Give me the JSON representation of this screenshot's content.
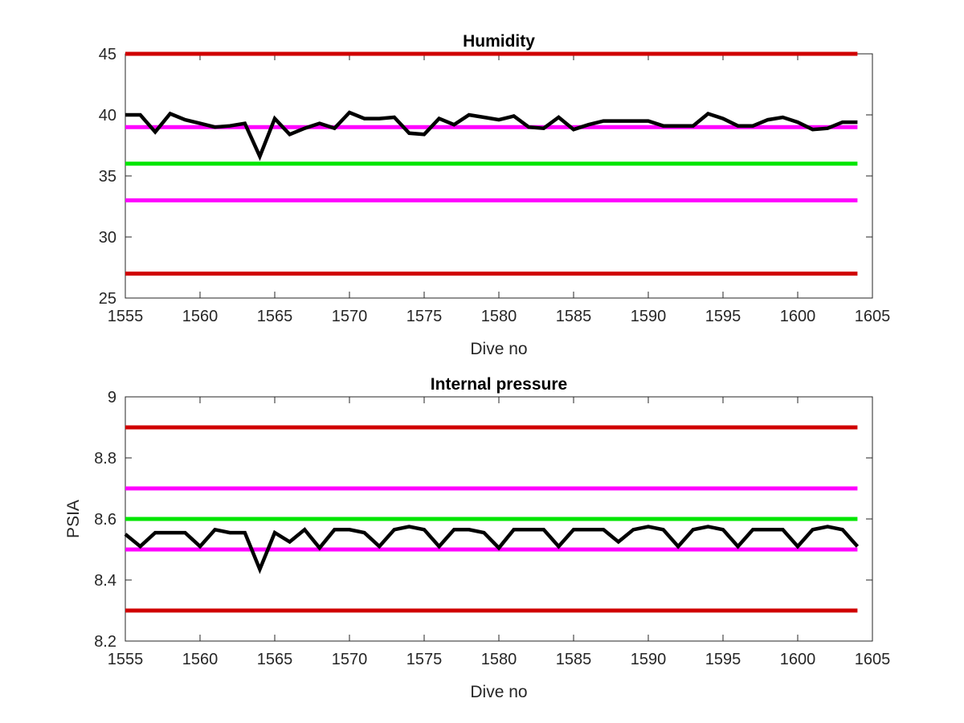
{
  "chart_data": [
    {
      "type": "line",
      "title": "Humidity",
      "xlabel": "Dive no",
      "ylabel": "",
      "xlim": [
        1555,
        1605
      ],
      "ylim": [
        25,
        45
      ],
      "xticks": [
        1555,
        1560,
        1565,
        1570,
        1575,
        1580,
        1585,
        1590,
        1595,
        1600,
        1605
      ],
      "yticks": [
        25,
        30,
        35,
        40,
        45
      ],
      "grid": false,
      "thresholds": [
        {
          "value": 45,
          "color": "#d00000"
        },
        {
          "value": 39,
          "color": "#ff00ff"
        },
        {
          "value": 36,
          "color": "#00e600"
        },
        {
          "value": 33,
          "color": "#ff00ff"
        },
        {
          "value": 27,
          "color": "#d00000"
        }
      ],
      "series": [
        {
          "color": "#000000",
          "x": [
            1555,
            1556,
            1557,
            1558,
            1559,
            1560,
            1561,
            1562,
            1563,
            1564,
            1565,
            1566,
            1567,
            1568,
            1569,
            1570,
            1571,
            1572,
            1573,
            1574,
            1575,
            1576,
            1577,
            1578,
            1579,
            1580,
            1581,
            1582,
            1583,
            1584,
            1585,
            1586,
            1587,
            1588,
            1589,
            1590,
            1591,
            1592,
            1593,
            1594,
            1595,
            1596,
            1597,
            1598,
            1599,
            1600,
            1601,
            1602,
            1603,
            1604
          ],
          "y": [
            40.0,
            40.0,
            38.6,
            40.1,
            39.6,
            39.3,
            39.0,
            39.1,
            39.3,
            36.6,
            39.7,
            38.4,
            38.9,
            39.3,
            38.9,
            40.2,
            39.7,
            39.7,
            39.8,
            38.5,
            38.4,
            39.7,
            39.2,
            40.0,
            39.8,
            39.6,
            39.9,
            39.0,
            38.9,
            39.8,
            38.8,
            39.2,
            39.5,
            39.5,
            39.5,
            39.5,
            39.1,
            39.1,
            39.1,
            40.1,
            39.7,
            39.1,
            39.1,
            39.6,
            39.8,
            39.4,
            38.8,
            38.9,
            39.4,
            39.4
          ]
        }
      ]
    },
    {
      "type": "line",
      "title": "Internal pressure",
      "xlabel": "Dive no",
      "ylabel": "PSIA",
      "xlim": [
        1555,
        1605
      ],
      "ylim": [
        8.2,
        9.0
      ],
      "xticks": [
        1555,
        1560,
        1565,
        1570,
        1575,
        1580,
        1585,
        1590,
        1595,
        1600,
        1605
      ],
      "yticks": [
        8.2,
        8.4,
        8.6,
        8.8,
        9
      ],
      "grid": false,
      "thresholds": [
        {
          "value": 8.9,
          "color": "#d00000"
        },
        {
          "value": 8.7,
          "color": "#ff00ff"
        },
        {
          "value": 8.6,
          "color": "#00e600"
        },
        {
          "value": 8.5,
          "color": "#ff00ff"
        },
        {
          "value": 8.3,
          "color": "#d00000"
        }
      ],
      "series": [
        {
          "color": "#000000",
          "x": [
            1555,
            1556,
            1557,
            1558,
            1559,
            1560,
            1561,
            1562,
            1563,
            1564,
            1565,
            1566,
            1567,
            1568,
            1569,
            1570,
            1571,
            1572,
            1573,
            1574,
            1575,
            1576,
            1577,
            1578,
            1579,
            1580,
            1581,
            1582,
            1583,
            1584,
            1585,
            1586,
            1587,
            1588,
            1589,
            1590,
            1591,
            1592,
            1593,
            1594,
            1595,
            1596,
            1597,
            1598,
            1599,
            1600,
            1601,
            1602,
            1603,
            1604
          ],
          "y": [
            8.55,
            8.51,
            8.555,
            8.555,
            8.555,
            8.51,
            8.565,
            8.555,
            8.555,
            8.435,
            8.555,
            8.525,
            8.565,
            8.505,
            8.565,
            8.565,
            8.555,
            8.51,
            8.565,
            8.575,
            8.565,
            8.51,
            8.565,
            8.565,
            8.555,
            8.505,
            8.565,
            8.565,
            8.565,
            8.51,
            8.565,
            8.565,
            8.565,
            8.525,
            8.565,
            8.575,
            8.565,
            8.51,
            8.565,
            8.575,
            8.565,
            8.51,
            8.565,
            8.565,
            8.565,
            8.51,
            8.565,
            8.575,
            8.565,
            8.51
          ]
        }
      ]
    }
  ]
}
